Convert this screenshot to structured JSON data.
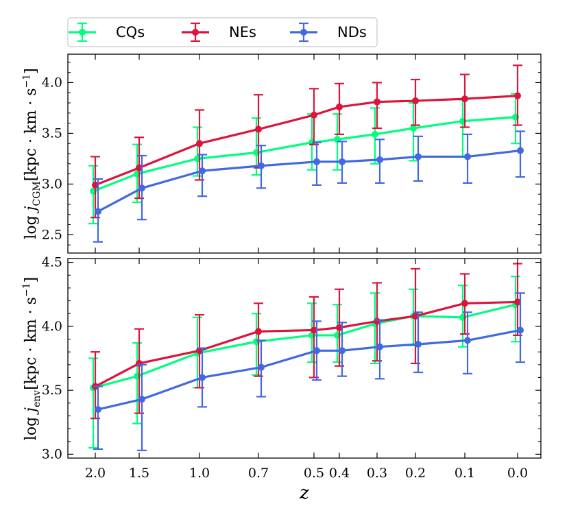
{
  "chart_data": [
    {
      "type": "line",
      "panel": "top",
      "ylabel": "log j_CGM [kpc · km · s^-1]",
      "ylabel_prefix": "log ",
      "ylabel_symbol": "j",
      "ylabel_sub": "CGM",
      "ylabel_units": "[kpc · km · s",
      "ylabel_exp": "−1",
      "ylabel_close": "]",
      "ylim": [
        2.32,
        4.28
      ],
      "yticks": [
        2.5,
        3.0,
        3.5,
        4.0
      ],
      "ytick_labels": [
        "2.5",
        "3.0",
        "3.5",
        "4.0"
      ],
      "x": [
        2.0,
        1.5,
        1.0,
        0.7,
        0.5,
        0.4,
        0.3,
        0.2,
        0.1,
        0.0
      ],
      "series": [
        {
          "name": "CQs",
          "color": "#00ff7f",
          "values": [
            2.93,
            3.1,
            3.25,
            3.31,
            3.41,
            3.44,
            3.49,
            3.55,
            3.62,
            3.66
          ],
          "err_low": [
            2.61,
            2.82,
            3.08,
            3.09,
            3.14,
            3.14,
            3.2,
            3.23,
            3.27,
            3.4
          ],
          "err_high": [
            3.18,
            3.39,
            3.56,
            3.65,
            3.69,
            3.69,
            3.75,
            3.8,
            3.83,
            3.89
          ]
        },
        {
          "name": "NEs",
          "color": "#dc143c",
          "values": [
            2.99,
            3.16,
            3.4,
            3.54,
            3.68,
            3.76,
            3.81,
            3.82,
            3.84,
            3.87
          ],
          "err_low": [
            2.67,
            2.86,
            3.04,
            3.16,
            3.39,
            3.49,
            3.55,
            3.58,
            3.56,
            3.58
          ],
          "err_high": [
            3.27,
            3.46,
            3.73,
            3.88,
            3.94,
            3.99,
            4.0,
            4.03,
            4.08,
            4.17
          ]
        },
        {
          "name": "NDs",
          "color": "#4169e1",
          "values": [
            2.73,
            2.96,
            3.13,
            3.18,
            3.22,
            3.22,
            3.24,
            3.27,
            3.27,
            3.33
          ],
          "err_low": [
            2.43,
            2.65,
            2.88,
            2.96,
            2.99,
            3.01,
            3.01,
            3.03,
            3.01,
            3.07
          ],
          "err_high": [
            3.05,
            3.28,
            3.29,
            3.38,
            3.41,
            3.42,
            3.44,
            3.47,
            3.49,
            3.52
          ]
        }
      ]
    },
    {
      "type": "line",
      "panel": "bottom",
      "ylabel": "log j_env [kpc · km · s^-1]",
      "ylabel_prefix": "log ",
      "ylabel_symbol": "j",
      "ylabel_sub": "env",
      "ylabel_units": "[kpc · km · s",
      "ylabel_exp": "−1",
      "ylabel_close": "]",
      "xlabel": "z",
      "ylim": [
        2.97,
        4.53
      ],
      "yticks": [
        3.0,
        3.5,
        4.0,
        4.5
      ],
      "ytick_labels": [
        "3.0",
        "3.5",
        "4.0",
        "4.5"
      ],
      "x": [
        2.0,
        1.5,
        1.0,
        0.7,
        0.5,
        0.4,
        0.3,
        0.2,
        0.1,
        0.0
      ],
      "xtick_labels": [
        "2.0",
        "1.5",
        "1.0",
        "0.7",
        "0.5",
        "0.4",
        "0.3",
        "0.2",
        "0.1",
        "0.0"
      ],
      "series": [
        {
          "name": "CQs",
          "color": "#00ff7f",
          "values": [
            3.52,
            3.61,
            3.79,
            3.88,
            3.93,
            3.93,
            4.02,
            4.08,
            4.07,
            4.17
          ],
          "err_low": [
            3.05,
            3.24,
            3.52,
            3.62,
            3.72,
            3.72,
            3.71,
            3.85,
            3.84,
            3.88
          ],
          "err_high": [
            3.75,
            3.87,
            4.07,
            4.1,
            4.18,
            4.17,
            4.26,
            4.29,
            4.32,
            4.39
          ]
        },
        {
          "name": "NEs",
          "color": "#dc143c",
          "values": [
            3.53,
            3.71,
            3.81,
            3.96,
            3.97,
            3.99,
            4.04,
            4.08,
            4.18,
            4.19
          ],
          "err_low": [
            3.28,
            3.32,
            3.52,
            3.61,
            3.6,
            3.69,
            3.73,
            3.71,
            3.94,
            3.93
          ],
          "err_high": [
            3.8,
            3.98,
            4.09,
            4.18,
            4.23,
            4.29,
            4.34,
            4.45,
            4.41,
            4.49
          ]
        },
        {
          "name": "NDs",
          "color": "#4169e1",
          "values": [
            3.35,
            3.43,
            3.6,
            3.68,
            3.81,
            3.81,
            3.84,
            3.86,
            3.89,
            3.97
          ],
          "err_low": [
            3.04,
            3.03,
            3.37,
            3.45,
            3.58,
            3.61,
            3.59,
            3.64,
            3.63,
            3.72
          ],
          "err_high": [
            3.53,
            3.7,
            3.83,
            3.89,
            4.04,
            4.03,
            4.05,
            4.11,
            4.11,
            4.26
          ]
        }
      ]
    }
  ],
  "legend": {
    "placement": "top-left, above top panel",
    "entries": [
      {
        "label": "CQs",
        "color": "#00ff7f"
      },
      {
        "label": "NEs",
        "color": "#dc143c"
      },
      {
        "label": "NDs",
        "color": "#4169e1"
      }
    ]
  },
  "xlabel": "z",
  "xtick_labels": [
    "2.0",
    "1.5",
    "1.0",
    "0.7",
    "0.5",
    "0.4",
    "0.3",
    "0.2",
    "0.1",
    "0.0"
  ]
}
